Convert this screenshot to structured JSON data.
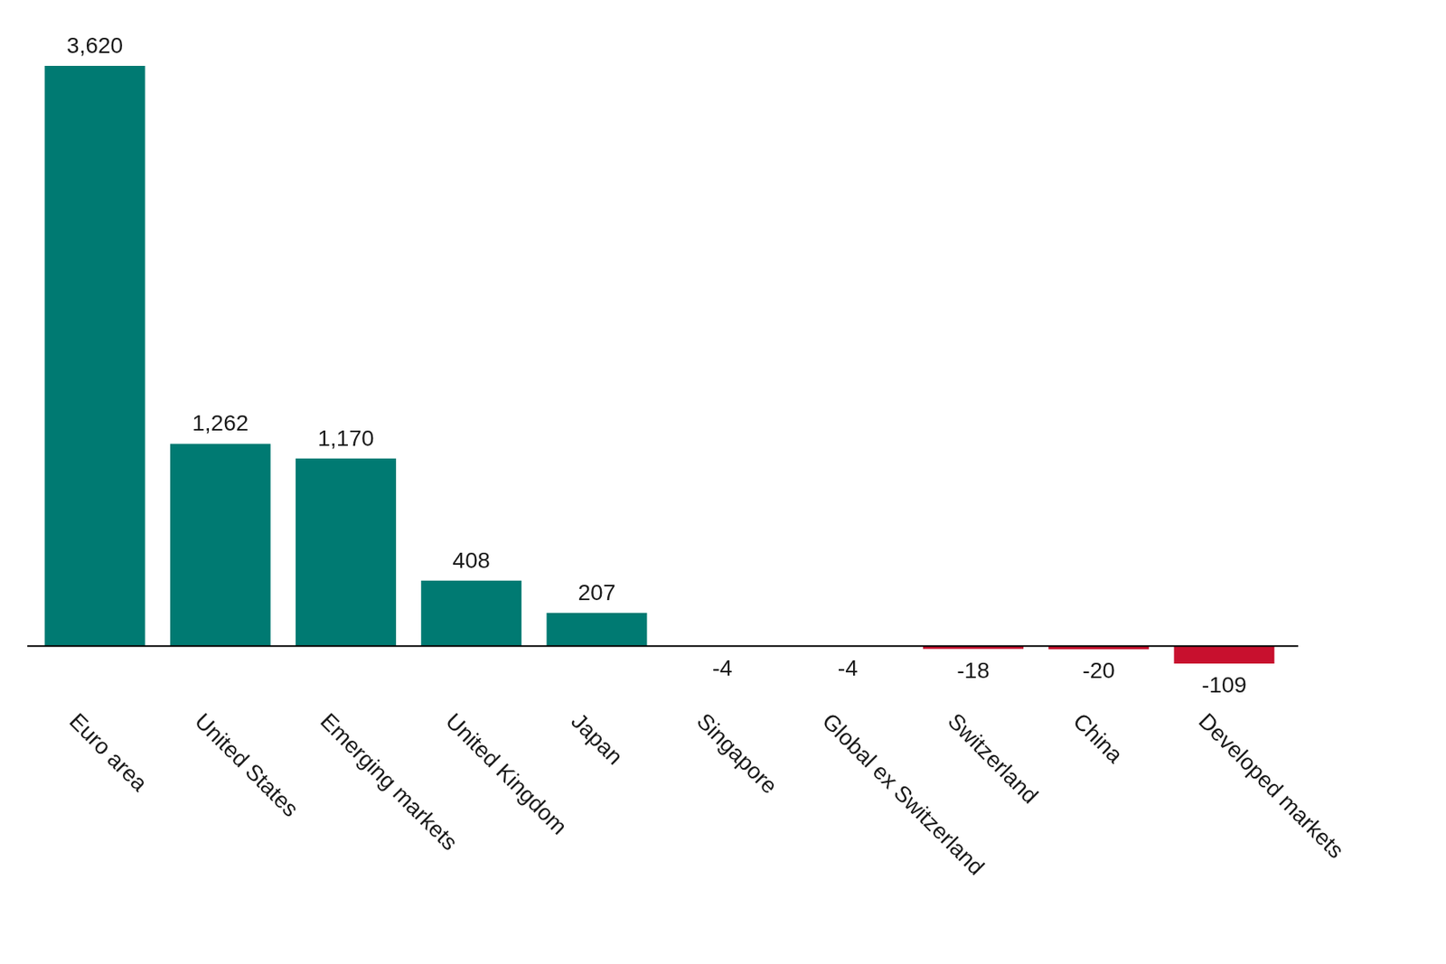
{
  "chart_data": {
    "type": "bar",
    "categories": [
      "Euro area",
      "United States",
      "Emerging markets",
      "United Kingdom",
      "Japan",
      "Singapore",
      "Global ex Switzerland",
      "Switzerland",
      "China",
      "Developed markets"
    ],
    "values": [
      3620,
      1262,
      1170,
      408,
      207,
      -4,
      -4,
      -18,
      -20,
      -109
    ],
    "value_labels": [
      "3,620",
      "1,262",
      "1,170",
      "408",
      "207",
      "-4",
      "-4",
      "-18",
      "-20",
      "-109"
    ],
    "colors": [
      "#007a72",
      "#007a72",
      "#007a72",
      "#007a72",
      "#007a72",
      "#c8c8c8",
      "#c8c8c8",
      "#c8102e",
      "#c8102e",
      "#c8102e"
    ],
    "data_labels": true,
    "tick_labels": "x",
    "grid": false
  }
}
